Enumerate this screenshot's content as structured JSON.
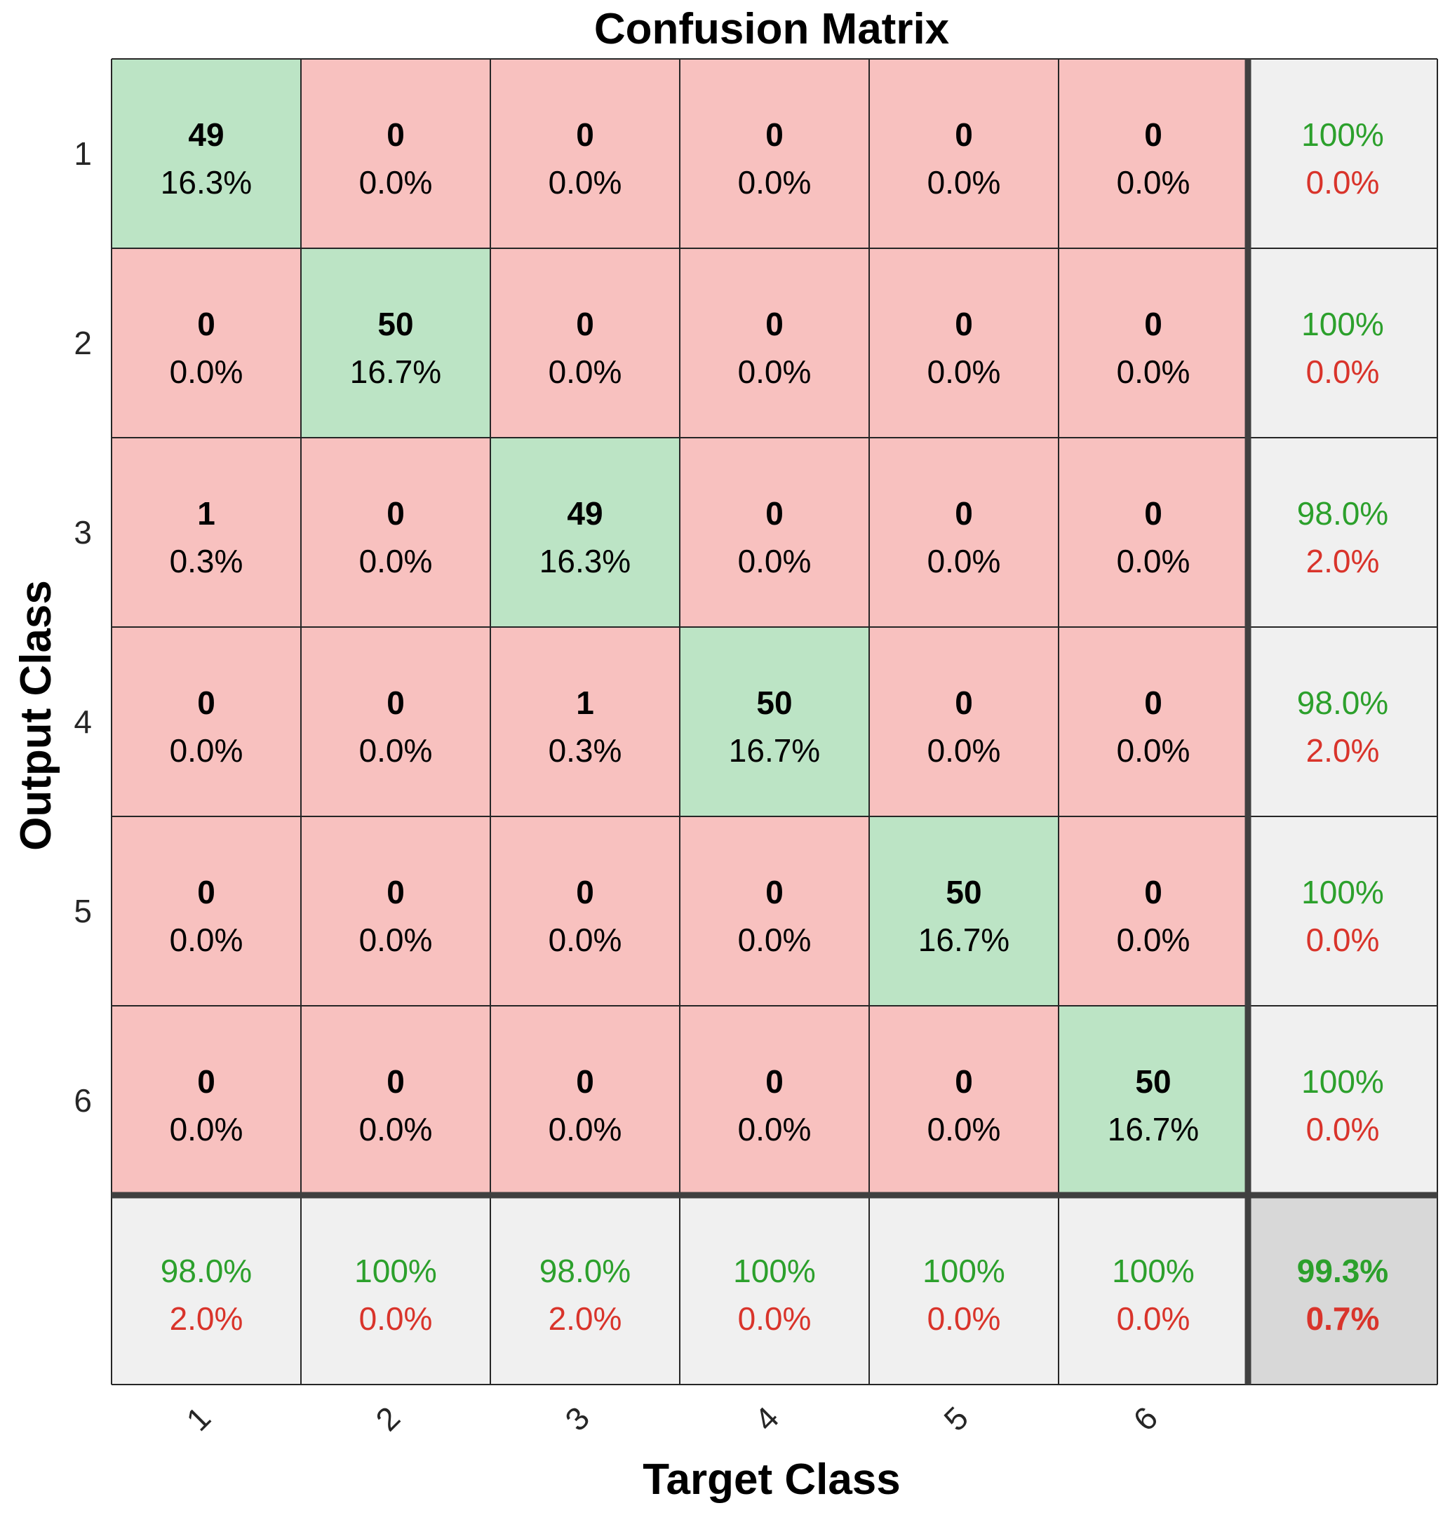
{
  "chart_data": {
    "type": "heatmap",
    "title": "Confusion Matrix",
    "xlabel": "Target Class",
    "ylabel": "Output Class",
    "classes": [
      "1",
      "2",
      "3",
      "4",
      "5",
      "6"
    ],
    "matrix": [
      [
        49,
        0,
        0,
        0,
        0,
        0
      ],
      [
        0,
        50,
        0,
        0,
        0,
        0
      ],
      [
        1,
        0,
        49,
        0,
        0,
        0
      ],
      [
        0,
        0,
        1,
        50,
        0,
        0
      ],
      [
        0,
        0,
        0,
        0,
        50,
        0
      ],
      [
        0,
        0,
        0,
        0,
        0,
        50
      ]
    ],
    "cell_percent": [
      [
        "16.3%",
        "0.0%",
        "0.0%",
        "0.0%",
        "0.0%",
        "0.0%"
      ],
      [
        "0.0%",
        "16.7%",
        "0.0%",
        "0.0%",
        "0.0%",
        "0.0%"
      ],
      [
        "0.3%",
        "0.0%",
        "16.3%",
        "0.0%",
        "0.0%",
        "0.0%"
      ],
      [
        "0.0%",
        "0.0%",
        "0.3%",
        "16.7%",
        "0.0%",
        "0.0%"
      ],
      [
        "0.0%",
        "0.0%",
        "0.0%",
        "0.0%",
        "16.7%",
        "0.0%"
      ],
      [
        "0.0%",
        "0.0%",
        "0.0%",
        "0.0%",
        "0.0%",
        "16.7%"
      ]
    ],
    "row_summary": [
      {
        "correct": "100%",
        "error": "0.0%"
      },
      {
        "correct": "100%",
        "error": "0.0%"
      },
      {
        "correct": "98.0%",
        "error": "2.0%"
      },
      {
        "correct": "98.0%",
        "error": "2.0%"
      },
      {
        "correct": "100%",
        "error": "0.0%"
      },
      {
        "correct": "100%",
        "error": "0.0%"
      }
    ],
    "column_summary": [
      {
        "correct": "98.0%",
        "error": "2.0%"
      },
      {
        "correct": "100%",
        "error": "0.0%"
      },
      {
        "correct": "98.0%",
        "error": "2.0%"
      },
      {
        "correct": "100%",
        "error": "0.0%"
      },
      {
        "correct": "100%",
        "error": "0.0%"
      },
      {
        "correct": "100%",
        "error": "0.0%"
      }
    ],
    "overall": {
      "correct": "99.3%",
      "error": "0.7%"
    },
    "colors": {
      "diagonal": "#bce4c5",
      "off_diagonal": "#f8c1bf",
      "summary": "#f0f0f0",
      "overall": "#d8d8d8",
      "correct_text": "#2ca02c",
      "error_text": "#d9342b",
      "grid": "#262626",
      "separator": "#404040"
    }
  }
}
